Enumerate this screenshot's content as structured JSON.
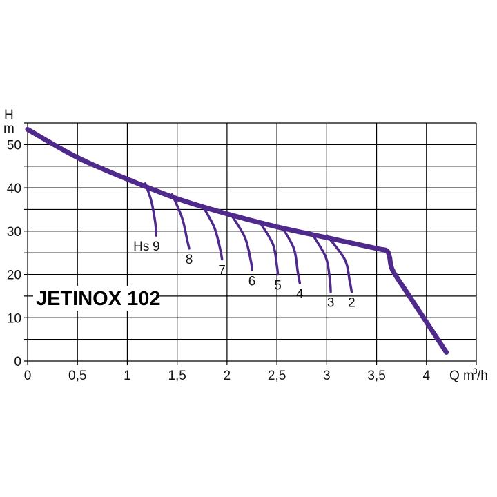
{
  "chart_data": {
    "type": "line",
    "title": "JETINOX 102",
    "xlabel_parts": [
      "Q m",
      "3",
      "/h"
    ],
    "ylabel_parts": [
      "H",
      "m"
    ],
    "xlim": [
      0,
      4.5
    ],
    "ylim": [
      0,
      55
    ],
    "grid": true,
    "x_ticks": [
      "0",
      "0,5",
      "1",
      "1,5",
      "2",
      "2,5",
      "3",
      "3,5",
      "4"
    ],
    "y_ticks": [
      "0",
      "10",
      "20",
      "30",
      "40",
      "50"
    ],
    "colors": {
      "curve": "#4f2a8c",
      "grid": "#000000",
      "background": "#ffffff"
    },
    "main_curve": {
      "x": [
        0,
        0.5,
        1.0,
        1.5,
        2.0,
        2.5,
        3.0,
        3.5,
        3.6,
        3.63,
        3.66,
        3.8,
        4.0,
        4.2
      ],
      "y": [
        53.5,
        47,
        42,
        37.5,
        34,
        31,
        28.5,
        26,
        25.5,
        24,
        21,
        16,
        9,
        2
      ]
    },
    "suction_curves": [
      {
        "label": "9",
        "prefix": "Hs",
        "x": [
          1.18,
          1.24,
          1.28,
          1.29
        ],
        "y": [
          41,
          37,
          32,
          29
        ]
      },
      {
        "label": "8",
        "x": [
          1.45,
          1.55,
          1.6,
          1.62
        ],
        "y": [
          38.5,
          33,
          28,
          26
        ]
      },
      {
        "label": "7",
        "x": [
          1.75,
          1.87,
          1.93,
          1.95
        ],
        "y": [
          36,
          31,
          26,
          23.5
        ]
      },
      {
        "label": "6",
        "x": [
          2.05,
          2.18,
          2.24,
          2.25
        ],
        "y": [
          33.5,
          28.5,
          23,
          21
        ]
      },
      {
        "label": "5",
        "x": [
          2.33,
          2.46,
          2.5,
          2.51
        ],
        "y": [
          32,
          27,
          22,
          20
        ]
      },
      {
        "label": "4",
        "x": [
          2.55,
          2.67,
          2.71,
          2.73
        ],
        "y": [
          31,
          26,
          20.5,
          18
        ]
      },
      {
        "label": "3",
        "x": [
          2.85,
          2.99,
          3.03,
          3.04
        ],
        "y": [
          29.5,
          24,
          19,
          16
        ]
      },
      {
        "label": "2",
        "x": [
          3.0,
          3.18,
          3.23,
          3.25
        ],
        "y": [
          29,
          23.5,
          18.5,
          16
        ]
      }
    ]
  }
}
